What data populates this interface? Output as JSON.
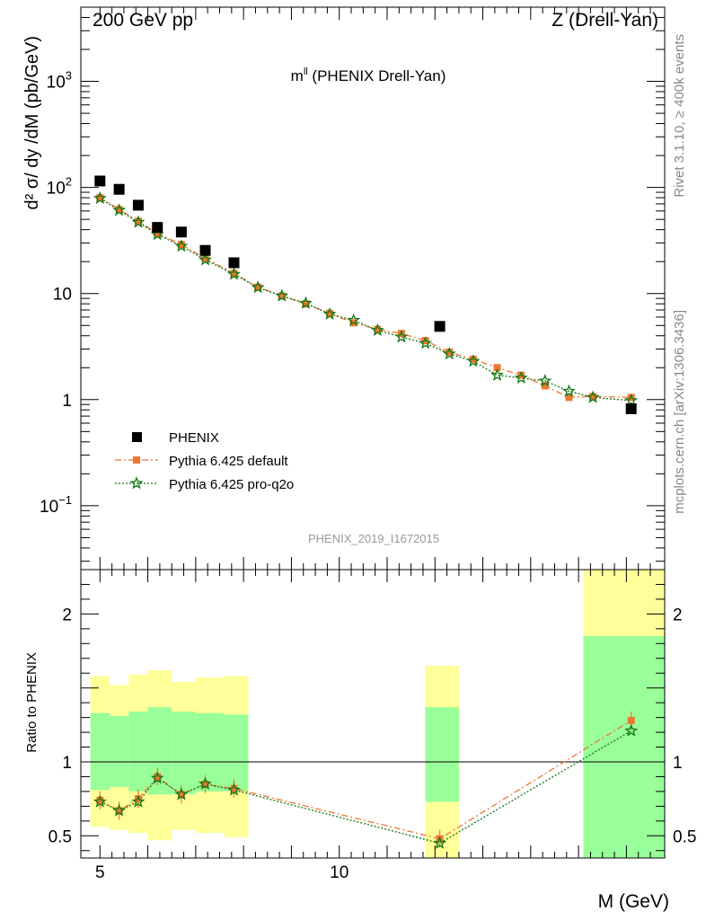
{
  "header": {
    "left": "200 GeV pp",
    "right": "Z (Drell-Yan)"
  },
  "plot_title": "m",
  "plot_title_sup": "ll",
  "plot_title_rest": " (PHENIX Drell-Yan)",
  "side_right_top": "Rivet 3.1.10, ≥ 400k events",
  "side_right_bottom": "mcplots.cern.ch [arXiv:1306.3436]",
  "analysis_id": "PHENIX_2019_I1672015",
  "ylabel_main": "d² σ/ dy /dM (pb/GeV)",
  "ylabel_ratio": "Ratio to PHENIX",
  "xlabel": "M (GeV)",
  "legend": {
    "data": "PHENIX",
    "mc1": "Pythia 6.425 default",
    "mc2": "Pythia 6.425 pro-q2o"
  },
  "colors": {
    "data": "#000000",
    "mc1": "#ee7733",
    "mc2": "#117711",
    "band_inner": "#99ff99",
    "band_outer": "#ffff99"
  },
  "chart_data": [
    {
      "type": "scatter",
      "panel": "main",
      "xscale": "linear",
      "yscale": "log",
      "xlim": [
        4.6,
        16.8
      ],
      "ylim": [
        0.025,
        5000
      ],
      "x_ticks": [
        "5",
        "10"
      ],
      "y_ticks": [
        "10⁻¹",
        "1",
        "10",
        "10²",
        "10³"
      ],
      "series": [
        {
          "name": "PHENIX",
          "x": [
            5.0,
            5.4,
            5.8,
            6.2,
            6.7,
            7.2,
            7.8,
            12.1,
            16.1
          ],
          "y": [
            115,
            96,
            68,
            42,
            38,
            25.5,
            19.5,
            4.9,
            0.82
          ]
        },
        {
          "name": "Pythia 6.425 default",
          "x": [
            5.0,
            5.4,
            5.8,
            6.2,
            6.7,
            7.2,
            7.8,
            8.3,
            8.8,
            9.3,
            9.8,
            10.3,
            10.8,
            11.3,
            11.8,
            12.3,
            12.8,
            13.3,
            13.8,
            14.3,
            14.8,
            15.3,
            16.1
          ],
          "y": [
            80,
            62,
            48,
            37,
            29,
            21.5,
            15.5,
            11.5,
            9.5,
            8.0,
            6.5,
            5.3,
            4.6,
            4.2,
            3.6,
            2.8,
            2.4,
            2.0,
            1.7,
            1.35,
            1.05,
            1.07,
            1.05
          ]
        },
        {
          "name": "Pythia 6.425 pro-q2o",
          "x": [
            5.0,
            5.4,
            5.8,
            6.2,
            6.7,
            7.2,
            7.8,
            8.3,
            8.8,
            9.3,
            9.8,
            10.3,
            10.8,
            11.3,
            11.8,
            12.3,
            12.8,
            13.3,
            13.8,
            14.3,
            14.8,
            15.3,
            16.1
          ],
          "y": [
            79,
            61,
            47,
            36,
            28,
            20.8,
            15.2,
            11.4,
            9.5,
            8.1,
            6.4,
            5.6,
            4.5,
            3.9,
            3.4,
            2.7,
            2.3,
            1.7,
            1.6,
            1.5,
            1.2,
            1.05,
            0.98
          ]
        }
      ]
    },
    {
      "type": "scatter",
      "panel": "ratio",
      "xscale": "linear",
      "xlim": [
        4.6,
        16.8
      ],
      "ylim": [
        0.35,
        2.3
      ],
      "y_ticks": [
        "0.5",
        "1",
        "2"
      ],
      "x_ticks": [
        "5",
        "10"
      ],
      "reference_line": 1,
      "bands": [
        {
          "x": [
            4.8,
            5.2
          ],
          "inner": [
            0.81,
            1.33
          ],
          "outer": [
            0.56,
            1.58
          ]
        },
        {
          "x": [
            5.2,
            5.6
          ],
          "inner": [
            0.83,
            1.31
          ],
          "outer": [
            0.54,
            1.52
          ]
        },
        {
          "x": [
            5.6,
            6.0
          ],
          "inner": [
            0.8,
            1.34
          ],
          "outer": [
            0.52,
            1.59
          ]
        },
        {
          "x": [
            6.0,
            6.5
          ],
          "inner": [
            0.78,
            1.37
          ],
          "outer": [
            0.47,
            1.62
          ]
        },
        {
          "x": [
            6.5,
            7.0
          ],
          "inner": [
            0.78,
            1.34
          ],
          "outer": [
            0.54,
            1.54
          ]
        },
        {
          "x": [
            7.0,
            7.6
          ],
          "inner": [
            0.8,
            1.33
          ],
          "outer": [
            0.52,
            1.57
          ]
        },
        {
          "x": [
            7.6,
            8.1
          ],
          "inner": [
            0.8,
            1.32
          ],
          "outer": [
            0.49,
            1.58
          ]
        },
        {
          "x": [
            11.8,
            12.5
          ],
          "inner": [
            0.73,
            1.37
          ],
          "outer": [
            0.33,
            1.65
          ]
        },
        {
          "x": [
            15.1,
            16.8
          ],
          "inner": [
            0.3,
            1.85
          ],
          "outer": [
            0.3,
            2.3
          ]
        }
      ],
      "series": [
        {
          "name": "Pythia 6.425 default",
          "x": [
            5.0,
            5.4,
            5.8,
            6.2,
            6.7,
            7.2,
            7.8,
            12.1,
            16.1
          ],
          "y": [
            0.74,
            0.67,
            0.75,
            0.9,
            0.78,
            0.85,
            0.82,
            0.48,
            1.28
          ]
        },
        {
          "name": "Pythia 6.425 pro-q2o",
          "x": [
            5.0,
            5.4,
            5.8,
            6.2,
            6.7,
            7.2,
            7.8,
            12.1,
            16.1
          ],
          "y": [
            0.73,
            0.67,
            0.73,
            0.89,
            0.78,
            0.85,
            0.81,
            0.45,
            1.21
          ]
        }
      ]
    }
  ]
}
